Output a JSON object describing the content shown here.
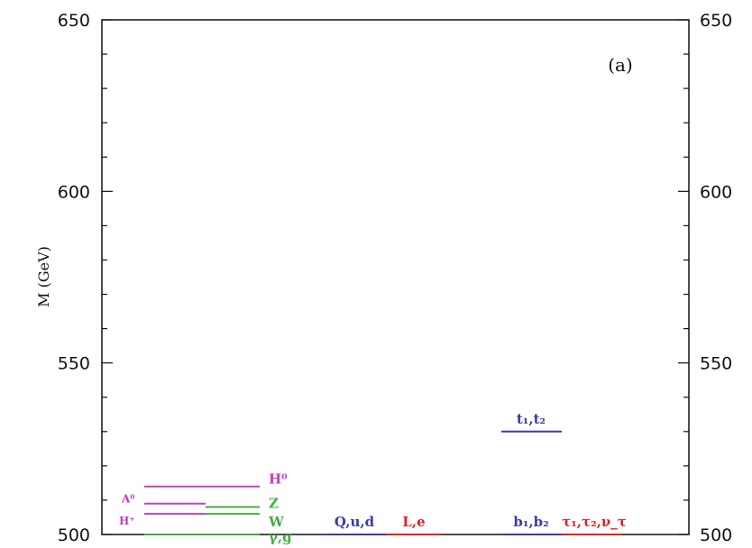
{
  "chart_data": {
    "type": "level-diagram",
    "ylabel": "M (GeV)",
    "ylim": [
      500,
      650
    ],
    "yticks_major": [
      500,
      550,
      600,
      650
    ],
    "ytick_labels": [
      "500",
      "550",
      "600",
      "650"
    ],
    "yticks_minor_step": 10,
    "panel_label": "(a)",
    "colors": {
      "higgs": "#c040c0",
      "gauge": "#40b040",
      "squark": "#3a3aa8",
      "slepton": "#e02020"
    },
    "levels": [
      {
        "label": "H⁰",
        "mass": 514,
        "group": "higgs",
        "column": 0
      },
      {
        "label": "A⁰",
        "mass": 509,
        "group": "higgs",
        "column": 0
      },
      {
        "label": "H⁺",
        "mass": 506,
        "group": "higgs",
        "column": 0
      },
      {
        "label": "Z",
        "mass": 508,
        "group": "gauge",
        "column": 0
      },
      {
        "label": "W",
        "mass": 506,
        "group": "gauge",
        "column": 0
      },
      {
        "label": "γ,g",
        "mass": 500,
        "group": "gauge",
        "column": 0
      },
      {
        "label": "Q,u,d",
        "mass": 500,
        "group": "squark",
        "column": 1
      },
      {
        "label": "L,e",
        "mass": 500,
        "group": "slepton",
        "column": 1
      },
      {
        "label": "t₁,t₂",
        "mass": 530,
        "group": "squark",
        "column": 2
      },
      {
        "label": "b₁,b₂",
        "mass": 500,
        "group": "squark",
        "column": 2
      },
      {
        "label": "τ₁,τ₂,ν_τ",
        "mass": 500,
        "group": "slepton",
        "column": 2
      }
    ]
  }
}
